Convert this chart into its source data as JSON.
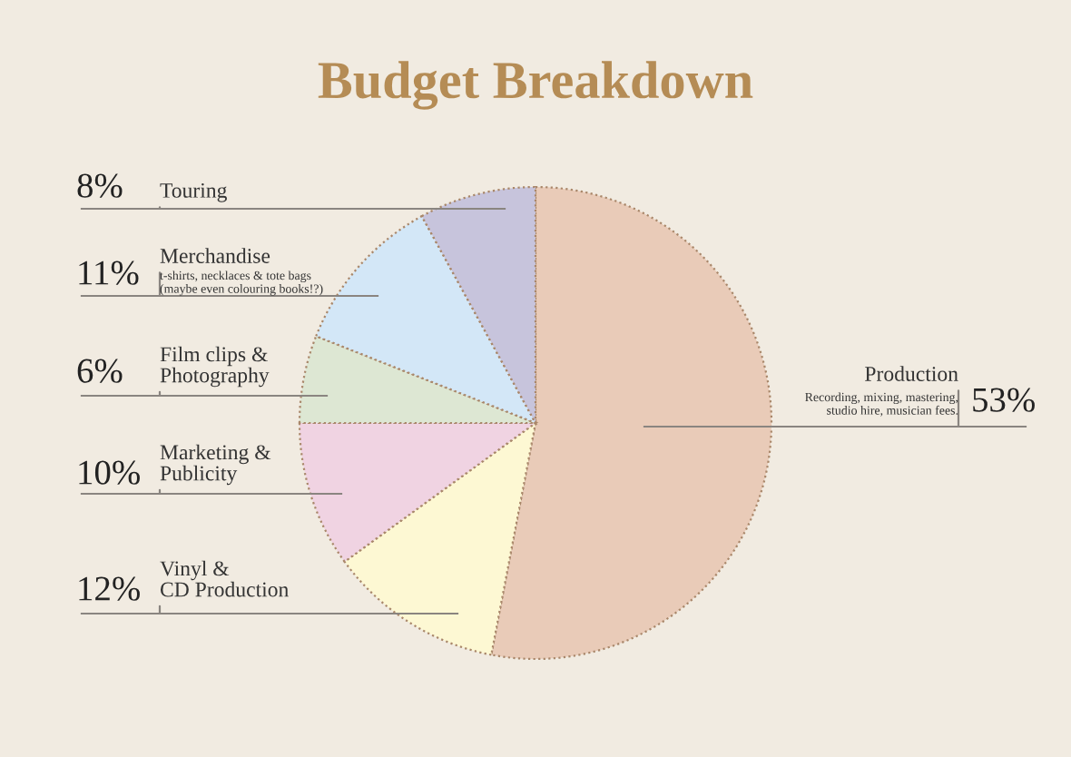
{
  "chart_data": {
    "type": "pie",
    "title": "Budget Breakdown",
    "categories": [
      "Production",
      "Vinyl &\nCD Production",
      "Marketing &\nPublicity",
      "Film clips &\nPhotography",
      "Merchandise",
      "Touring"
    ],
    "values": [
      53,
      12,
      10,
      6,
      11,
      8
    ],
    "value_labels": [
      "53%",
      "12%",
      "10%",
      "6%",
      "11%",
      "8%"
    ],
    "colors": [
      "#e9cbb8",
      "#fdf8d3",
      "#f0d3e2",
      "#dde7d3",
      "#d3e7f7",
      "#c7c4dc"
    ],
    "annotations": [
      "Recording, mixing, mastering,\nstudio hire, musician fees.",
      "t-shirts, necklaces & tote bags\n(maybe even colouring books!?)"
    ]
  }
}
